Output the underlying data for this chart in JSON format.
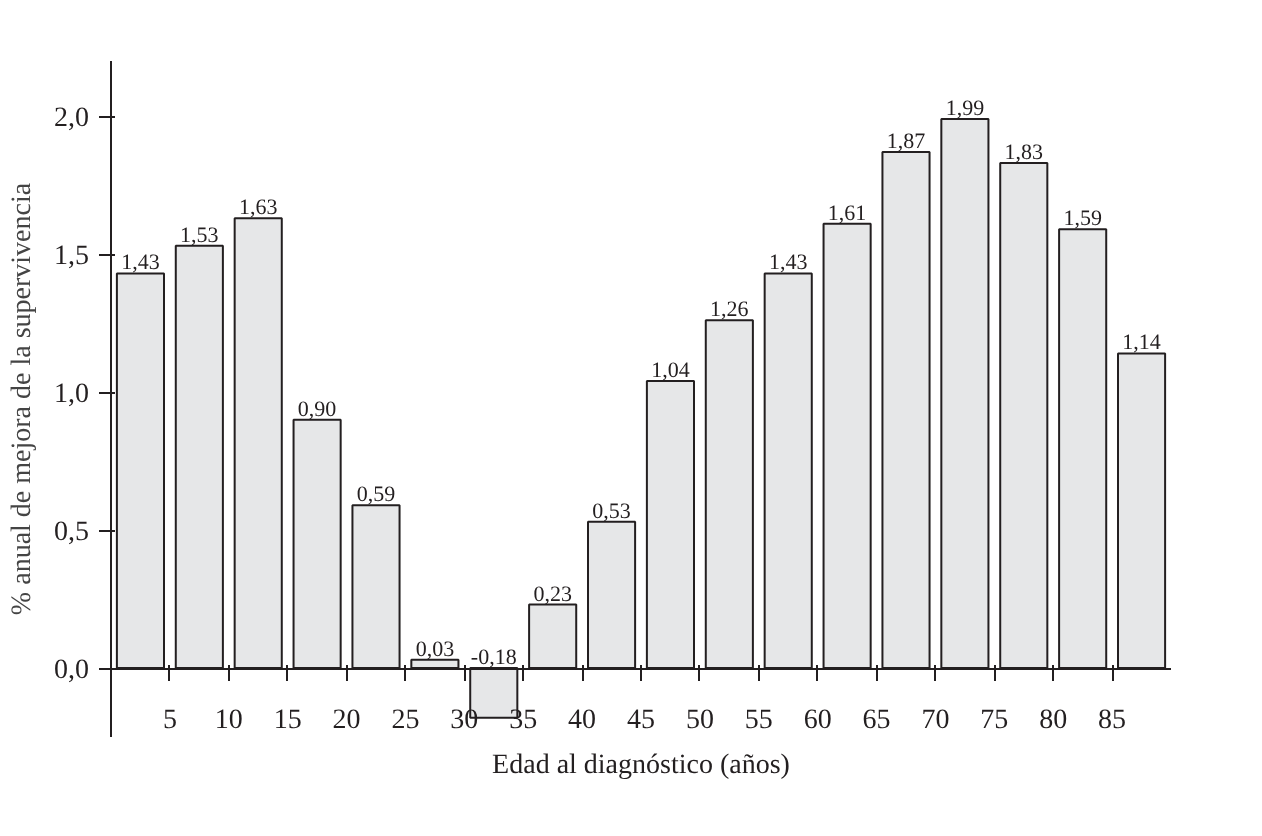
{
  "chart_data": {
    "type": "bar",
    "xlabel": "Edad al diagnóstico (años)",
    "ylabel": "% anual de mejora de la supervivencia",
    "x": [
      2.5,
      7.5,
      12.5,
      17.5,
      22.5,
      27.5,
      32.5,
      37.5,
      42.5,
      47.5,
      52.5,
      57.5,
      62.5,
      67.5,
      72.5,
      77.5,
      82.5,
      87.5
    ],
    "values": [
      1.43,
      1.53,
      1.63,
      0.9,
      0.59,
      0.03,
      -0.18,
      0.23,
      0.53,
      1.04,
      1.26,
      1.43,
      1.61,
      1.87,
      1.99,
      1.83,
      1.59,
      1.14
    ],
    "value_labels": [
      "1,43",
      "1,53",
      "1,63",
      "0,90",
      "0,59",
      "0,03",
      "-0,18",
      "0,23",
      "0,53",
      "1,04",
      "1,26",
      "1,43",
      "1,61",
      "1,87",
      "1,99",
      "1,83",
      "1,59",
      "1,14"
    ],
    "color": "#e6e7e8",
    "xlim": [
      0,
      90
    ],
    "xticks": [
      {
        "value": 0,
        "label": null
      },
      5,
      10,
      15,
      20,
      25,
      30,
      35,
      40,
      45,
      50,
      55,
      60,
      65,
      70,
      75,
      80,
      85
    ],
    "ylim": [
      -0.25,
      2.2
    ],
    "yticks": [
      {
        "value": 0,
        "label": "0,0"
      },
      {
        "value": 0.5,
        "label": "0,5"
      },
      {
        "value": 1,
        "label": "1,0"
      },
      {
        "value": 1.5,
        "label": "1,5"
      },
      {
        "value": 2,
        "label": "2,0"
      }
    ],
    "grid": false
  }
}
